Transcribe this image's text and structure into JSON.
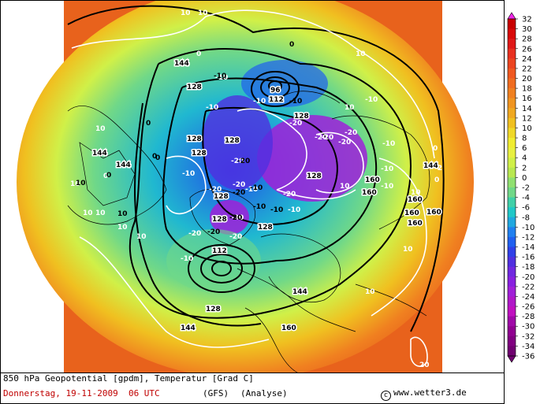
{
  "colors": {
    "warm_background": "#e8621c",
    "land_outline": "#000000",
    "isotherm": "#ffffff",
    "geopotential": "#000000",
    "date_text": "#c00000"
  },
  "map": {
    "contour_labels_white": [
      "10",
      "10",
      "0",
      "10",
      "10",
      "-10",
      "-10",
      "-10",
      "-10",
      "-20",
      "-20",
      "-20",
      "-20",
      "-10",
      "-20",
      "-10",
      "-20",
      "-20",
      "-30",
      "-20",
      "-10",
      "-10",
      "-20",
      "-20",
      "-20",
      "-10",
      "10",
      "0",
      "10",
      "10",
      "10",
      "0",
      "0",
      "-2",
      "10",
      "10",
      "10",
      "10",
      "10",
      "10",
      "20",
      "-10",
      "-10"
    ],
    "contour_labels_black": [
      "10",
      "0",
      "0",
      "-10",
      "0",
      "-10",
      "-20",
      "-10",
      "-20",
      "-10",
      "-20",
      "-20",
      "-10",
      "0",
      "0",
      "10"
    ],
    "geopotential_labels": [
      "144",
      "128",
      "112",
      "128",
      "128",
      "128",
      "128",
      "128",
      "128",
      "112",
      "128",
      "144",
      "160",
      "160",
      "160",
      "160",
      "160",
      "160",
      "144",
      "144",
      "128",
      "144",
      "144",
      "96",
      "128",
      "160"
    ],
    "low_center_labels": [
      "96",
      "112",
      "128",
      "112"
    ]
  },
  "colorbar": {
    "ticks": [
      "32",
      "30",
      "28",
      "26",
      "24",
      "22",
      "20",
      "18",
      "16",
      "14",
      "12",
      "10",
      "8",
      "6",
      "4",
      "2",
      "0",
      "-2",
      "-4",
      "-6",
      "-8",
      "-10",
      "-12",
      "-14",
      "-16",
      "-18",
      "-20",
      "-22",
      "-24",
      "-26",
      "-28",
      "-30",
      "-32",
      "-34",
      "-36"
    ],
    "colors": [
      "#f028e8",
      "#c80000",
      "#d80808",
      "#e01818",
      "#e83020",
      "#ec4420",
      "#f05820",
      "#f06c20",
      "#f08020",
      "#f09420",
      "#f0a820",
      "#f0c020",
      "#f0d828",
      "#f0ec30",
      "#e8f040",
      "#d0f048",
      "#b8e850",
      "#90e070",
      "#70d888",
      "#40d0a8",
      "#20c8c8",
      "#20a8e0",
      "#2080f0",
      "#2060f0",
      "#3040e8",
      "#5030e0",
      "#7028e0",
      "#8820e0",
      "#a020d8",
      "#b018c8",
      "#c010c0",
      "#a008a8",
      "#900090",
      "#800080",
      "#700070"
    ]
  },
  "caption": {
    "line1": "850 hPa Geopotential [gpdm], Temperatur [Grad C]",
    "line2": "Donnerstag, 19-11-2009  06 UTC",
    "model": "(GFS)",
    "run": "(Analyse)",
    "copyright_symbol": "c",
    "website": "www.wetter3.de"
  }
}
